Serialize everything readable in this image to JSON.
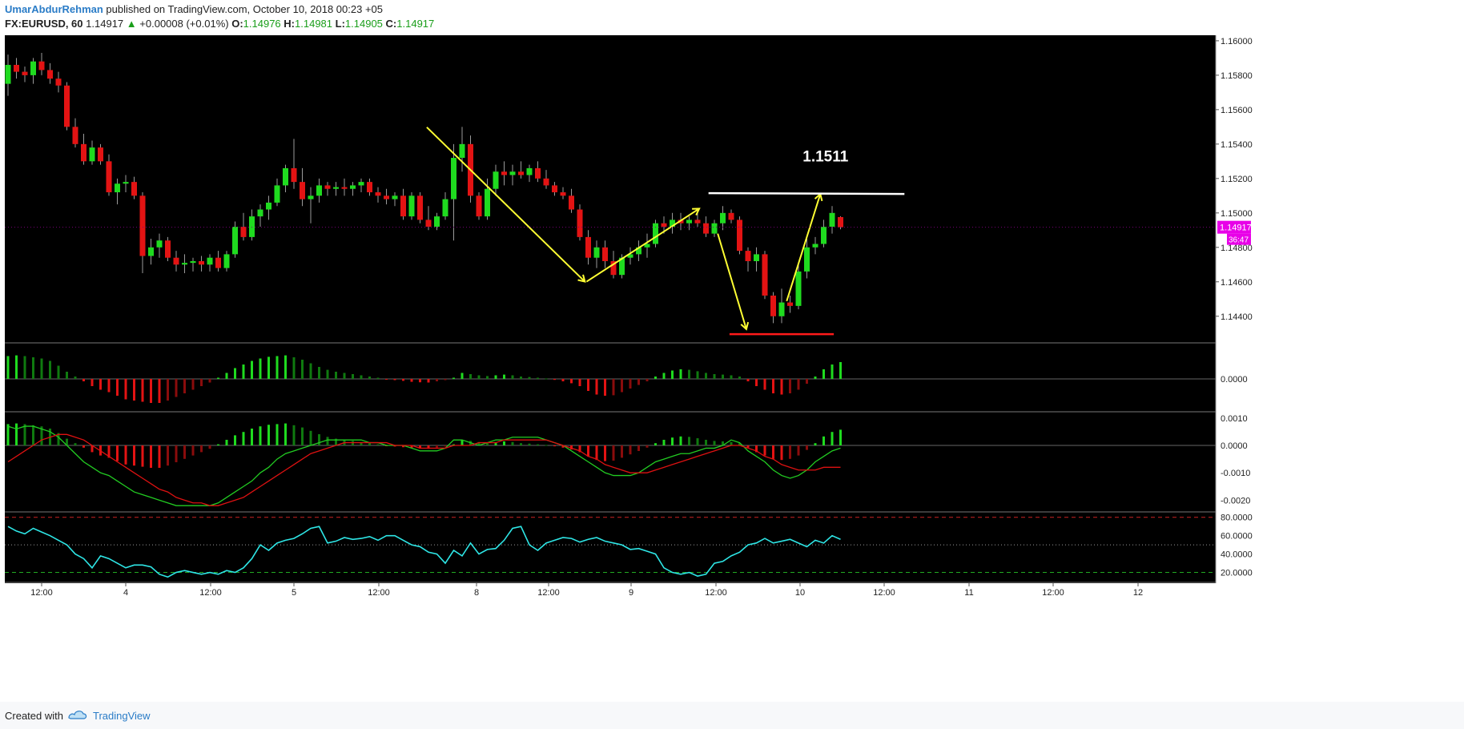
{
  "header": {
    "author": "UmarAbdurRehman",
    "published_text": "published on TradingView.com, October 10, 2018 00:23 +05",
    "symbol": "FX:EURUSD, 60",
    "last": "1.14917",
    "change": "+0.00008 (+0.01%)",
    "o_label": "O:",
    "o": "1.14976",
    "h_label": "H:",
    "h": "1.14981",
    "l_label": "L:",
    "l": "1.14905",
    "c_label": "C:",
    "c": "1.14917"
  },
  "footer": {
    "created_with": "Created with",
    "brand": "TradingView"
  },
  "colors": {
    "background": "#000000",
    "up": "#1fdb1f",
    "down": "#e31313",
    "annotation_yellow": "#ffff33",
    "annotation_white": "#ffffff",
    "annotation_red": "#ff1a1a",
    "rsi": "#2ee6e6",
    "macd_line": "#22cc22",
    "signal_line": "#dd1111",
    "price_badge": "#e800e8"
  },
  "chart_data": [
    {
      "type": "candlestick",
      "pane": "price",
      "ylim": [
        1.1425,
        1.1606
      ],
      "y_ticks": [
        "1.16000",
        "1.15800",
        "1.15600",
        "1.15400",
        "1.15200",
        "1.15000",
        "1.14800",
        "1.14600",
        "1.14400"
      ],
      "x_ticks": [
        "12:00",
        "4",
        "12:00",
        "5",
        "12:00",
        "8",
        "12:00",
        "9",
        "12:00",
        "10",
        "12:00",
        "11",
        "12:00",
        "12"
      ],
      "last_price_badge": "1.14917",
      "countdown_badge": "36:47",
      "annotation_text": "1.1511",
      "ohlc": [
        [
          1.1575,
          1.1592,
          1.1568,
          1.1586
        ],
        [
          1.1586,
          1.159,
          1.1578,
          1.1582
        ],
        [
          1.1582,
          1.1585,
          1.1576,
          1.158
        ],
        [
          1.158,
          1.159,
          1.1575,
          1.1588
        ],
        [
          1.1588,
          1.1593,
          1.158,
          1.1583
        ],
        [
          1.1583,
          1.1587,
          1.1575,
          1.1578
        ],
        [
          1.1578,
          1.1582,
          1.157,
          1.1574
        ],
        [
          1.1574,
          1.1576,
          1.1548,
          1.155
        ],
        [
          1.155,
          1.1555,
          1.1538,
          1.154
        ],
        [
          1.154,
          1.1546,
          1.1528,
          1.153
        ],
        [
          1.153,
          1.1542,
          1.1528,
          1.1538
        ],
        [
          1.1538,
          1.154,
          1.1528,
          1.153
        ],
        [
          1.153,
          1.1534,
          1.151,
          1.1512
        ],
        [
          1.1512,
          1.152,
          1.1505,
          1.1517
        ],
        [
          1.1517,
          1.1522,
          1.1512,
          1.1518
        ],
        [
          1.1518,
          1.1521,
          1.1508,
          1.151
        ],
        [
          1.151,
          1.1512,
          1.1465,
          1.1475
        ],
        [
          1.1475,
          1.1485,
          1.147,
          1.148
        ],
        [
          1.148,
          1.1488,
          1.1474,
          1.1484
        ],
        [
          1.1484,
          1.1486,
          1.1472,
          1.1474
        ],
        [
          1.1474,
          1.1478,
          1.1466,
          1.147
        ],
        [
          1.147,
          1.1476,
          1.1465,
          1.1471
        ],
        [
          1.1471,
          1.1474,
          1.1466,
          1.1472
        ],
        [
          1.1472,
          1.1475,
          1.1466,
          1.147
        ],
        [
          1.147,
          1.1476,
          1.1466,
          1.1474
        ],
        [
          1.1474,
          1.1478,
          1.1466,
          1.1468
        ],
        [
          1.1468,
          1.1478,
          1.1466,
          1.1476
        ],
        [
          1.1476,
          1.1495,
          1.1474,
          1.1492
        ],
        [
          1.1492,
          1.15,
          1.1484,
          1.1486
        ],
        [
          1.1486,
          1.1502,
          1.1484,
          1.1498
        ],
        [
          1.1498,
          1.1505,
          1.1492,
          1.1502
        ],
        [
          1.1502,
          1.151,
          1.1496,
          1.1506
        ],
        [
          1.1506,
          1.152,
          1.1504,
          1.1516
        ],
        [
          1.1516,
          1.1528,
          1.1512,
          1.1526
        ],
        [
          1.1526,
          1.1543,
          1.1514,
          1.1518
        ],
        [
          1.1518,
          1.1526,
          1.1504,
          1.1508
        ],
        [
          1.1508,
          1.1515,
          1.1494,
          1.151
        ],
        [
          1.151,
          1.152,
          1.1506,
          1.1516
        ],
        [
          1.1516,
          1.1518,
          1.151,
          1.1514
        ],
        [
          1.1514,
          1.1518,
          1.151,
          1.1515
        ],
        [
          1.1515,
          1.152,
          1.151,
          1.1514
        ],
        [
          1.1514,
          1.1518,
          1.151,
          1.1516
        ],
        [
          1.1516,
          1.152,
          1.1512,
          1.1518
        ],
        [
          1.1518,
          1.152,
          1.151,
          1.1512
        ],
        [
          1.1512,
          1.1515,
          1.1506,
          1.151
        ],
        [
          1.151,
          1.1514,
          1.1505,
          1.1508
        ],
        [
          1.1508,
          1.1512,
          1.1504,
          1.151
        ],
        [
          1.151,
          1.1514,
          1.1496,
          1.1498
        ],
        [
          1.1498,
          1.1512,
          1.1496,
          1.151
        ],
        [
          1.151,
          1.1512,
          1.1494,
          1.1496
        ],
        [
          1.1496,
          1.1504,
          1.149,
          1.1492
        ],
        [
          1.1492,
          1.15,
          1.149,
          1.1498
        ],
        [
          1.1498,
          1.1512,
          1.1496,
          1.1508
        ],
        [
          1.1508,
          1.154,
          1.1484,
          1.1532
        ],
        [
          1.1532,
          1.155,
          1.1524,
          1.154
        ],
        [
          1.154,
          1.1545,
          1.1506,
          1.151
        ],
        [
          1.151,
          1.1512,
          1.1496,
          1.1498
        ],
        [
          1.1498,
          1.152,
          1.1496,
          1.1514
        ],
        [
          1.1514,
          1.1528,
          1.151,
          1.1524
        ],
        [
          1.1524,
          1.153,
          1.1516,
          1.1522
        ],
        [
          1.1522,
          1.1528,
          1.1516,
          1.1524
        ],
        [
          1.1524,
          1.153,
          1.152,
          1.1522
        ],
        [
          1.1522,
          1.1528,
          1.1518,
          1.1526
        ],
        [
          1.1526,
          1.153,
          1.1518,
          1.152
        ],
        [
          1.152,
          1.1525,
          1.1514,
          1.1516
        ],
        [
          1.1516,
          1.1518,
          1.151,
          1.1512
        ],
        [
          1.1512,
          1.1515,
          1.1508,
          1.151
        ],
        [
          1.151,
          1.1514,
          1.15,
          1.1502
        ],
        [
          1.1502,
          1.1505,
          1.1484,
          1.1486
        ],
        [
          1.1486,
          1.149,
          1.147,
          1.1474
        ],
        [
          1.1474,
          1.1484,
          1.1468,
          1.148
        ],
        [
          1.148,
          1.1484,
          1.1468,
          1.1472
        ],
        [
          1.1472,
          1.1478,
          1.1462,
          1.1464
        ],
        [
          1.1464,
          1.1476,
          1.1462,
          1.1474
        ],
        [
          1.1474,
          1.148,
          1.147,
          1.1476
        ],
        [
          1.1476,
          1.1484,
          1.1472,
          1.148
        ],
        [
          1.148,
          1.1488,
          1.1474,
          1.1482
        ],
        [
          1.1482,
          1.1496,
          1.148,
          1.1494
        ],
        [
          1.1494,
          1.1498,
          1.1488,
          1.1492
        ],
        [
          1.1492,
          1.15,
          1.1488,
          1.1496
        ],
        [
          1.1496,
          1.15,
          1.149,
          1.1494
        ],
        [
          1.1494,
          1.1498,
          1.149,
          1.1496
        ],
        [
          1.1496,
          1.15,
          1.1492,
          1.1494
        ],
        [
          1.1494,
          1.1498,
          1.1486,
          1.1488
        ],
        [
          1.1488,
          1.1496,
          1.1486,
          1.1494
        ],
        [
          1.1494,
          1.1504,
          1.149,
          1.15
        ],
        [
          1.15,
          1.1502,
          1.1494,
          1.1496
        ],
        [
          1.1496,
          1.1498,
          1.1476,
          1.1478
        ],
        [
          1.1478,
          1.148,
          1.1466,
          1.1472
        ],
        [
          1.1472,
          1.148,
          1.1466,
          1.1476
        ],
        [
          1.1476,
          1.1478,
          1.145,
          1.1452
        ],
        [
          1.1452,
          1.1454,
          1.1436,
          1.144
        ],
        [
          1.144,
          1.1456,
          1.1436,
          1.1448
        ],
        [
          1.1448,
          1.1452,
          1.1442,
          1.1446
        ],
        [
          1.1446,
          1.147,
          1.1444,
          1.1466
        ],
        [
          1.1466,
          1.1485,
          1.1462,
          1.148
        ],
        [
          1.148,
          1.1486,
          1.1476,
          1.1482
        ],
        [
          1.1482,
          1.1496,
          1.148,
          1.1492
        ],
        [
          1.1492,
          1.1504,
          1.1488,
          1.15
        ],
        [
          1.14976,
          1.14981,
          1.14905,
          1.14917
        ]
      ]
    },
    {
      "type": "bar",
      "pane": "histogram",
      "y_ticks": [
        "0.0000"
      ],
      "values": [
        0.95,
        0.98,
        0.95,
        0.9,
        0.85,
        0.75,
        0.55,
        0.3,
        0.1,
        -0.1,
        -0.3,
        -0.45,
        -0.55,
        -0.7,
        -0.85,
        -0.9,
        -0.95,
        -1.0,
        -1.0,
        -0.9,
        -0.75,
        -0.6,
        -0.45,
        -0.3,
        -0.15,
        0.05,
        0.25,
        0.45,
        0.6,
        0.75,
        0.85,
        0.92,
        0.95,
        0.98,
        0.9,
        0.8,
        0.65,
        0.5,
        0.38,
        0.3,
        0.25,
        0.2,
        0.15,
        0.1,
        0.05,
        -0.02,
        -0.05,
        -0.08,
        -0.12,
        -0.14,
        -0.15,
        -0.1,
        -0.05,
        0.05,
        0.25,
        0.2,
        0.15,
        0.12,
        0.15,
        0.18,
        0.15,
        0.1,
        0.08,
        0.05,
        0.02,
        -0.04,
        -0.1,
        -0.18,
        -0.3,
        -0.5,
        -0.65,
        -0.7,
        -0.68,
        -0.55,
        -0.4,
        -0.25,
        -0.1,
        0.1,
        0.25,
        0.35,
        0.4,
        0.38,
        0.32,
        0.25,
        0.2,
        0.18,
        0.15,
        0.1,
        -0.1,
        -0.3,
        -0.45,
        -0.6,
        -0.65,
        -0.6,
        -0.45,
        -0.2,
        0.1,
        0.4,
        0.6,
        0.7
      ]
    },
    {
      "type": "line",
      "pane": "macd",
      "y_ticks": [
        "0.0010",
        "0.0000",
        "-0.0010",
        "-0.0020"
      ],
      "ylim": [
        -0.0024,
        0.0012
      ],
      "series": [
        {
          "values": [
            0.0007,
            0.0006,
            0.0007,
            0.0007,
            0.0006,
            0.0005,
            0.0003,
            0.0,
            -0.0003,
            -0.0006,
            -0.0008,
            -0.001,
            -0.0011,
            -0.0013,
            -0.0015,
            -0.0017,
            -0.0018,
            -0.0019,
            -0.002,
            -0.0021,
            -0.0022,
            -0.0022,
            -0.0022,
            -0.0022,
            -0.0022,
            -0.0021,
            -0.0019,
            -0.0017,
            -0.0015,
            -0.0013,
            -0.001,
            -0.0008,
            -0.0005,
            -0.0003,
            -0.0002,
            -0.0001,
            0.0,
            0.0001,
            0.0002,
            0.0002,
            0.0002,
            0.0002,
            0.0002,
            0.0001,
            0.0001,
            0.0,
            0.0,
            0.0,
            -0.0001,
            -0.0002,
            -0.0002,
            -0.0002,
            -0.0001,
            0.0002,
            0.0002,
            0.0001,
            0.0,
            0.0001,
            0.0002,
            0.0002,
            0.0003,
            0.0003,
            0.0003,
            0.0003,
            0.0002,
            0.0001,
            0.0,
            -0.0002,
            -0.0004,
            -0.0006,
            -0.0008,
            -0.001,
            -0.0011,
            -0.0011,
            -0.0011,
            -0.001,
            -0.0008,
            -0.0006,
            -0.0005,
            -0.0004,
            -0.0003,
            -0.0003,
            -0.0002,
            -0.0001,
            -0.0001,
            0.0,
            0.0002,
            0.0001,
            -0.0002,
            -0.0004,
            -0.0006,
            -0.0009,
            -0.0011,
            -0.0012,
            -0.0011,
            -0.0009,
            -0.0006,
            -0.0004,
            -0.0002,
            -0.0001
          ]
        },
        {
          "values": [
            -0.0006,
            -0.0004,
            -0.0002,
            0.0,
            0.0002,
            0.0003,
            0.0004,
            0.0004,
            0.0003,
            0.0002,
            0.0,
            -0.0002,
            -0.0004,
            -0.0006,
            -0.0008,
            -0.001,
            -0.0012,
            -0.0014,
            -0.0016,
            -0.0017,
            -0.0019,
            -0.002,
            -0.0021,
            -0.0021,
            -0.0022,
            -0.0022,
            -0.0021,
            -0.002,
            -0.0019,
            -0.0017,
            -0.0015,
            -0.0013,
            -0.0011,
            -0.0009,
            -0.0007,
            -0.0005,
            -0.0003,
            -0.0002,
            -0.0001,
            0.0,
            0.0001,
            0.0001,
            0.0001,
            0.0001,
            0.0001,
            0.0001,
            0.0,
            0.0,
            0.0,
            -0.0001,
            -0.0001,
            -0.0001,
            -0.0001,
            0.0,
            0.0,
            0.0,
            0.0001,
            0.0001,
            0.0001,
            0.0002,
            0.0002,
            0.0002,
            0.0002,
            0.0002,
            0.0002,
            0.0001,
            0.0,
            -0.0001,
            -0.0002,
            -0.0004,
            -0.0005,
            -0.0007,
            -0.0008,
            -0.0009,
            -0.001,
            -0.001,
            -0.001,
            -0.0009,
            -0.0008,
            -0.0007,
            -0.0006,
            -0.0005,
            -0.0004,
            -0.0003,
            -0.0002,
            -0.0001,
            0.0,
            0.0,
            -0.0001,
            -0.0002,
            -0.0004,
            -0.0005,
            -0.0007,
            -0.0008,
            -0.0009,
            -0.0009,
            -0.0009,
            -0.0008,
            -0.0008,
            -0.0008
          ]
        }
      ]
    },
    {
      "type": "line",
      "pane": "rsi",
      "y_ticks": [
        "80.0000",
        "60.0000",
        "40.0000",
        "20.0000"
      ],
      "ylim": [
        10,
        85
      ],
      "levels": [
        80,
        50,
        20
      ],
      "values": [
        70,
        65,
        62,
        68,
        64,
        60,
        55,
        50,
        40,
        35,
        25,
        38,
        35,
        30,
        25,
        28,
        28,
        26,
        18,
        15,
        20,
        22,
        20,
        18,
        20,
        18,
        22,
        20,
        25,
        35,
        50,
        44,
        52,
        55,
        57,
        62,
        68,
        70,
        52,
        54,
        58,
        56,
        57,
        59,
        55,
        60,
        60,
        55,
        50,
        48,
        42,
        40,
        30,
        44,
        38,
        52,
        40,
        45,
        46,
        55,
        68,
        70,
        50,
        44,
        52,
        55,
        58,
        57,
        53,
        56,
        58,
        54,
        52,
        50,
        45,
        46,
        43,
        40,
        25,
        20,
        18,
        20,
        16,
        18,
        30,
        32,
        38,
        42,
        50,
        52,
        57,
        52,
        54,
        56,
        52,
        48,
        55,
        52,
        60,
        56
      ]
    }
  ]
}
